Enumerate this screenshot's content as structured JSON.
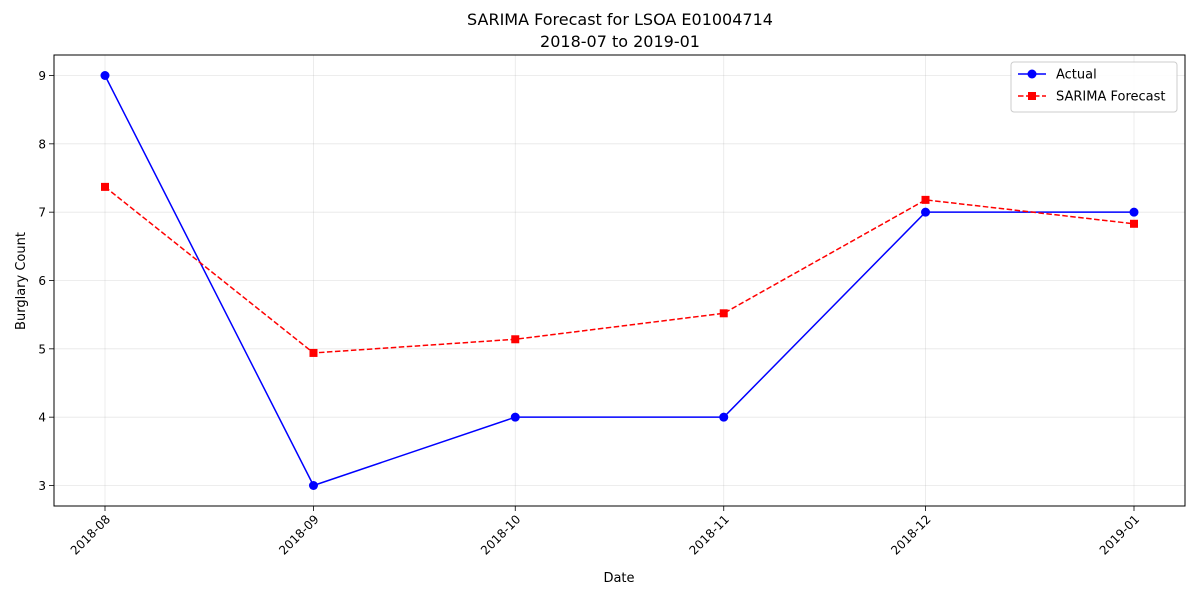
{
  "chart_data": {
    "type": "line",
    "title": "SARIMA Forecast for LSOA E01004714",
    "subtitle": "2018-07 to 2019-01",
    "xlabel": "Date",
    "ylabel": "Burglary Count",
    "categories": [
      "2018-08",
      "2018-09",
      "2018-10",
      "2018-11",
      "2018-12",
      "2019-01"
    ],
    "x_days": [
      0,
      31,
      61,
      92,
      122,
      153
    ],
    "ylim": [
      2.7,
      9.3
    ],
    "yticks": [
      3,
      4,
      5,
      6,
      7,
      8,
      9
    ],
    "grid": true,
    "legend_position": "top-right",
    "series": [
      {
        "name": "Actual",
        "values": [
          9,
          3,
          4,
          4,
          7,
          7
        ],
        "color": "#0000ff",
        "marker": "circle",
        "line_style": "solid"
      },
      {
        "name": "SARIMA Forecast",
        "values": [
          7.37,
          4.94,
          5.14,
          5.52,
          7.18,
          6.83
        ],
        "color": "#ff0000",
        "marker": "square",
        "line_style": "dashed"
      }
    ]
  }
}
